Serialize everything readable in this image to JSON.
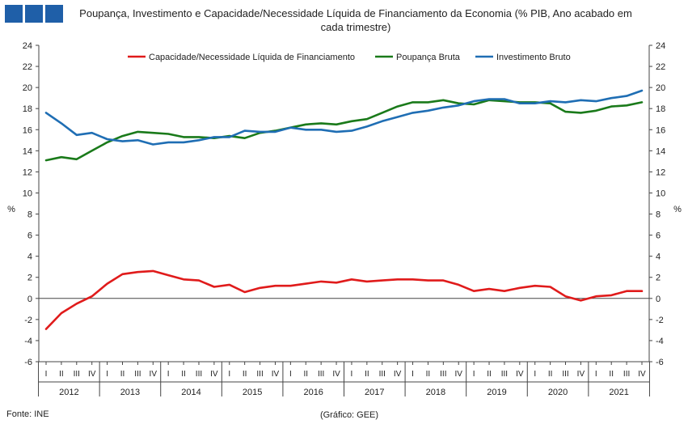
{
  "header": {
    "title": "Poupança, Investimento e Capacidade/Necessidade Líquida de Financiamento da Economia (% PIB, Ano acabado em cada trimestre)",
    "logo_color": "#1f5fa8"
  },
  "footer": {
    "source": "Fonte: INE",
    "credit": "(Gráfico: GEE)"
  },
  "chart_data": {
    "type": "line",
    "title": "Poupança, Investimento e Capacidade/Necessidade Líquida de Financiamento da Economia (% PIB, Ano acabado em cada trimestre)",
    "ylabel": "%",
    "ylabel_right": "%",
    "ylim": [
      -6,
      24
    ],
    "yticks": [
      -6,
      -4,
      -2,
      0,
      2,
      4,
      6,
      8,
      10,
      12,
      14,
      16,
      18,
      20,
      22,
      24
    ],
    "grid": false,
    "legend": "top",
    "quarters": [
      "I",
      "II",
      "III",
      "IV"
    ],
    "years": [
      "2012",
      "2013",
      "2014",
      "2015",
      "2016",
      "2017",
      "2018",
      "2019",
      "2020",
      "2021"
    ],
    "series": [
      {
        "name": "Capacidade/Necessidade Líquida de Financiamento",
        "color": "#e01b1b",
        "values": [
          -2.9,
          -1.4,
          -0.5,
          0.2,
          1.4,
          2.3,
          2.5,
          2.6,
          2.2,
          1.8,
          1.7,
          1.1,
          1.3,
          0.6,
          1.0,
          1.2,
          1.2,
          1.4,
          1.6,
          1.5,
          1.8,
          1.6,
          1.7,
          1.8,
          1.8,
          1.7,
          1.7,
          1.3,
          0.7,
          0.9,
          0.7,
          1.0,
          1.2,
          1.1,
          0.2,
          -0.2,
          0.2,
          0.3,
          0.7,
          0.7
        ]
      },
      {
        "name": "Poupança Bruta",
        "color": "#1a7a1a",
        "values": [
          13.1,
          13.4,
          13.2,
          14.0,
          14.8,
          15.4,
          15.8,
          15.7,
          15.6,
          15.3,
          15.3,
          15.2,
          15.4,
          15.2,
          15.7,
          15.9,
          16.2,
          16.5,
          16.6,
          16.5,
          16.8,
          17.0,
          17.6,
          18.2,
          18.6,
          18.6,
          18.8,
          18.5,
          18.4,
          18.8,
          18.7,
          18.6,
          18.6,
          18.5,
          17.7,
          17.6,
          17.8,
          18.2,
          18.3,
          18.6
        ]
      },
      {
        "name": "Investimento Bruto",
        "color": "#1f6eb4",
        "values": [
          17.6,
          16.6,
          15.5,
          15.7,
          15.1,
          14.9,
          15.0,
          14.6,
          14.8,
          14.8,
          15.0,
          15.3,
          15.3,
          15.9,
          15.8,
          15.8,
          16.2,
          16.0,
          16.0,
          15.8,
          15.9,
          16.3,
          16.8,
          17.2,
          17.6,
          17.8,
          18.1,
          18.3,
          18.7,
          18.9,
          18.9,
          18.5,
          18.5,
          18.7,
          18.6,
          18.8,
          18.7,
          19.0,
          19.2,
          19.7
        ]
      }
    ]
  }
}
